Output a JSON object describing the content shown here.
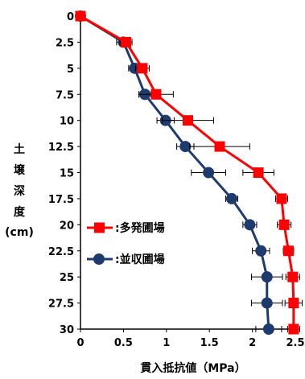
{
  "chart_data": {
    "type": "line",
    "orientation": "depth-profile",
    "xlabel": "貫入抵抗値（MPa）",
    "ylabel_chars": [
      "土",
      "壌",
      "深",
      "度",
      "(cm)"
    ],
    "xlim": [
      0,
      2.5
    ],
    "ylim": [
      0,
      30
    ],
    "y_inverted": true,
    "x_ticks": [
      "0",
      "0.5",
      "1",
      "1.5",
      "2",
      "2.5"
    ],
    "y_ticks": [
      "0",
      "2.5",
      "5",
      "7.5",
      "10",
      "12.5",
      "15",
      "17.5",
      "20",
      "22.5",
      "25",
      "27.5",
      "30"
    ],
    "grid": false,
    "legend_position": "left-middle",
    "series": [
      {
        "name": "多発圃場",
        "color": "#ff0000",
        "marker": "square",
        "depth": [
          0,
          2.5,
          5,
          7.5,
          10,
          12.5,
          15,
          17.5,
          20,
          22.5,
          25,
          27.5,
          30
        ],
        "values": [
          0.0,
          0.53,
          0.72,
          0.88,
          1.25,
          1.62,
          2.07,
          2.34,
          2.37,
          2.42,
          2.47,
          2.48,
          2.48
        ],
        "error": [
          0.0,
          0.07,
          0.08,
          0.2,
          0.3,
          0.35,
          0.18,
          0.07,
          0.08,
          0.06,
          0.08,
          0.1,
          0.07
        ]
      },
      {
        "name": "並収圃場",
        "color": "#1f3b6e",
        "marker": "circle",
        "depth": [
          0,
          2.5,
          5,
          7.5,
          10,
          12.5,
          15,
          17.5,
          20,
          22.5,
          25,
          27.5,
          30
        ],
        "values": [
          0.0,
          0.5,
          0.63,
          0.75,
          0.99,
          1.22,
          1.49,
          1.76,
          1.97,
          2.1,
          2.17,
          2.17,
          2.19
        ],
        "error": [
          0.0,
          0.08,
          0.07,
          0.07,
          0.1,
          0.1,
          0.2,
          0.07,
          0.08,
          0.1,
          0.18,
          0.18,
          0.15
        ]
      }
    ]
  }
}
